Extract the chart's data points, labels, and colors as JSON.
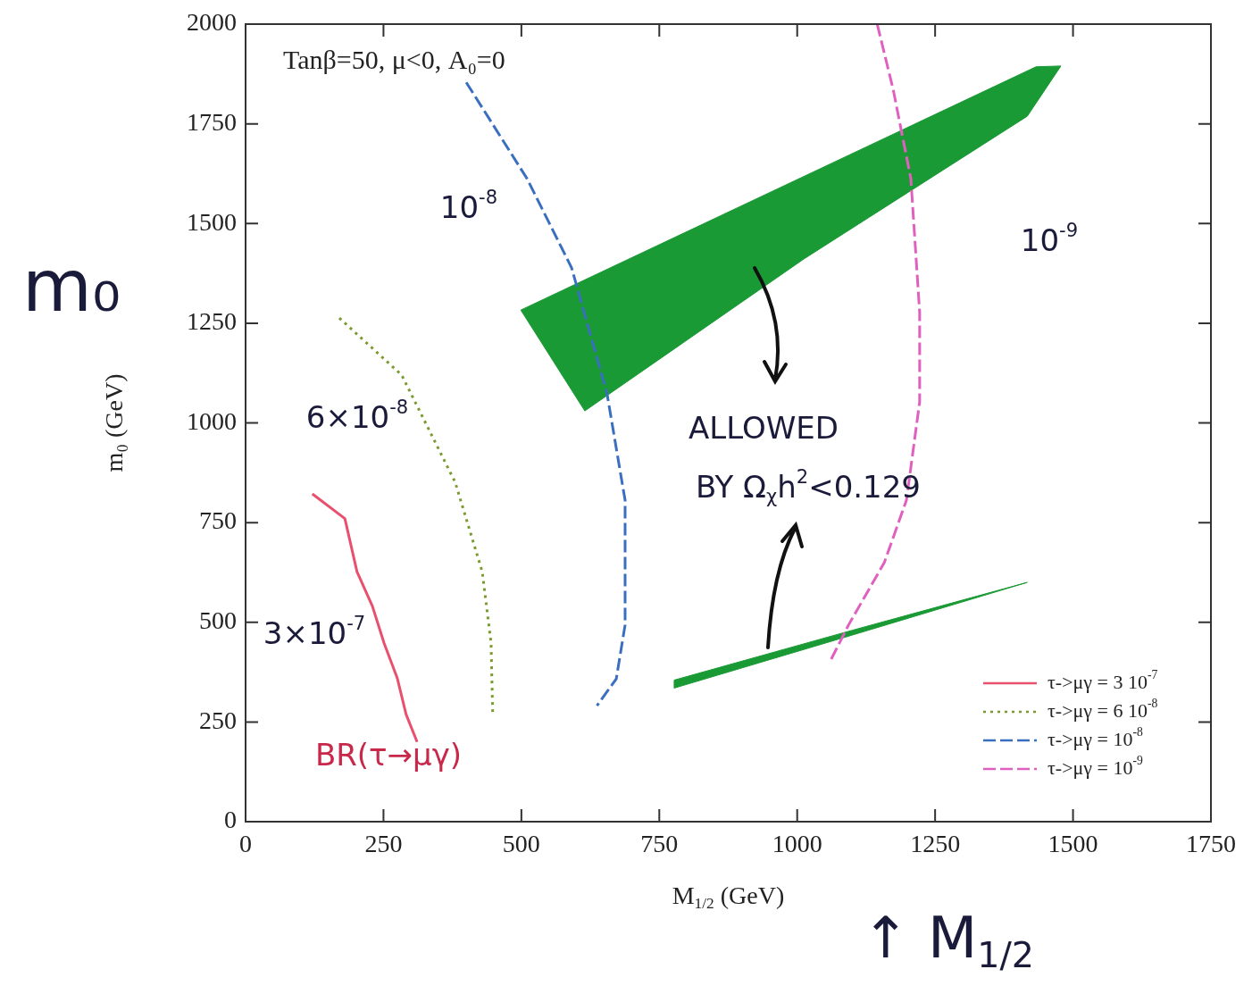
{
  "chart_data": {
    "type": "line",
    "xlabel": "M$_{1/2}$ (GeV)",
    "ylabel": "m₀ (GeV)",
    "xlim": [
      0,
      1750
    ],
    "xticks": [
      0,
      250,
      500,
      750,
      1000,
      1250,
      1500,
      1750
    ],
    "ylim": [
      0,
      2000
    ],
    "yticks": [
      0,
      250,
      500,
      750,
      1000,
      1250,
      1500,
      1750,
      2000
    ],
    "grid": false,
    "legend": "bottom right",
    "marker": "none",
    "series": [
      {
        "name": "τ->μγ = 3 10$^{-7}$",
        "color": "#e8506e",
        "line_style": "solid",
        "x": [
          121,
          180,
          202,
          230,
          251,
          275,
          291,
          311
        ],
        "values": [
          822,
          760,
          627,
          540,
          448,
          360,
          269,
          200
        ]
      },
      {
        "name": "τ->μγ = 6 10$^{-8}$",
        "color": "#7a9a30",
        "line_style": "dotted",
        "x": [
          170,
          283,
          380,
          429,
          445,
          448
        ],
        "values": [
          1263,
          1120,
          851,
          627,
          448,
          269
        ]
      },
      {
        "name": "τ->μγ = 10$^{-8}$",
        "color": "#3a6fc0",
        "line_style": "dashed",
        "x": [
          400,
          510,
          591,
          655,
          688,
          688,
          672,
          637
        ],
        "values": [
          1854,
          1613,
          1389,
          1075,
          806,
          493,
          358,
          291
        ]
      },
      {
        "name": "τ->μγ = 10$^{-9}$",
        "color": "#e060c0",
        "line_style": "dashed",
        "x": [
          1145,
          1174,
          1206,
          1222,
          1222,
          1198,
          1158,
          1093,
          1060
        ],
        "values": [
          2000,
          1836,
          1613,
          1277,
          1053,
          806,
          650,
          493,
          403
        ]
      },
      {
        "type": "area",
        "color": "#1a9a35",
        "x": [
          499,
          1433,
          1478,
          1417,
          1012,
          615,
          499
        ],
        "values": [
          1283,
          1893,
          1895,
          1769,
          1411,
          1030,
          1283
        ]
      },
      {
        "type": "area",
        "color": "#1a9a35",
        "x": [
          777,
          1100,
          1417,
          1100,
          777,
          777
        ],
        "values": [
          355,
          480,
          600,
          468,
          335,
          355
        ]
      }
    ],
    "annotations": [
      "Tanβ=50, μ<0, A₀=0",
      "m₀",
      "↑ M$_{1/2}$",
      "10$^{-8}$",
      "6×10$^{-8}$",
      "3×10$^{-7}$",
      "BR(τ→μγ)",
      "10$^{-9}$",
      "ALLOWED",
      "BY Ω$_{χ}$h$^{2}$<0.129"
    ]
  }
}
